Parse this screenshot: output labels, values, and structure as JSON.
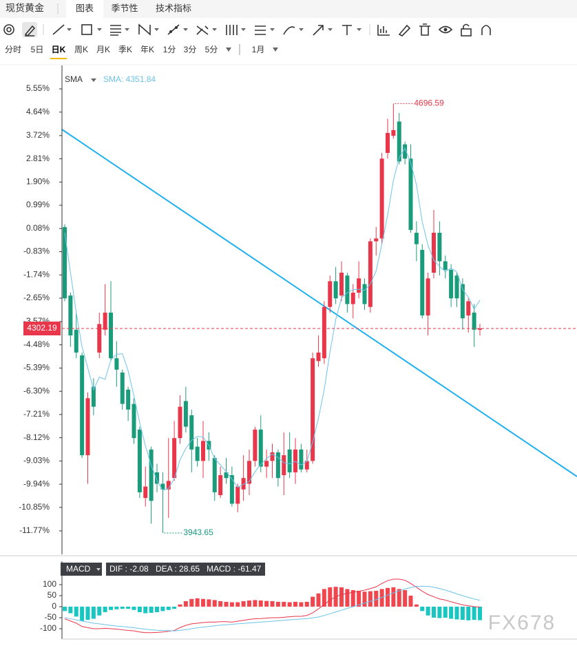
{
  "tabs": {
    "title": "现货黄金",
    "items": [
      "图表",
      "季节性",
      "技术指标"
    ]
  },
  "periods": [
    "分时",
    "5日",
    "日K",
    "周K",
    "月K",
    "季K",
    "年K",
    "1分",
    "3分",
    "5分"
  ],
  "range": "1月",
  "watermark": "FX678",
  "chart_data": {
    "type": "candlestick",
    "sma_label": "SMA",
    "sma_value_label": "SMA: 4351.84",
    "colors": {
      "up": "#e8364a",
      "down": "#1a9c7a",
      "sma": "#6cc3ea"
    },
    "ylim": [
      3906.2,
      4763.4
    ],
    "yticks": [
      {
        "value": 4722.27,
        "label": "5.55%"
      },
      {
        "value": 4681.55,
        "label": "4.64%"
      },
      {
        "value": 4640.39,
        "label": "3.72%"
      },
      {
        "value": 4599.68,
        "label": "2.81%"
      },
      {
        "value": 4558.96,
        "label": "1.90%"
      },
      {
        "value": 4518.25,
        "label": "0.99%"
      },
      {
        "value": 4477.54,
        "label": "0.08%"
      },
      {
        "value": 4436.83,
        "label": "-0.83%"
      },
      {
        "value": 4396.11,
        "label": "-1.74%"
      },
      {
        "value": 4355.4,
        "label": "-2.65%"
      },
      {
        "value": 4314.24,
        "label": "-3.57%"
      },
      {
        "value": 4273.53,
        "label": "-4.48%"
      },
      {
        "value": 4232.81,
        "label": "-5.39%"
      },
      {
        "value": 4192.1,
        "label": "-6.30%"
      },
      {
        "value": 4151.39,
        "label": "-7.21%"
      },
      {
        "value": 4110.68,
        "label": "-8.12%"
      },
      {
        "value": 4069.96,
        "label": "-9.03%"
      },
      {
        "value": 4029.25,
        "label": "-9.94%"
      },
      {
        "value": 3988.54,
        "label": "-10.85%"
      },
      {
        "value": 3947.38,
        "label": "-11.77%"
      }
    ],
    "candles": {
      "open": [
        4480,
        4360,
        4300,
        4255,
        4080,
        4200,
        4260,
        4300,
        4330,
        4250,
        4225,
        4195,
        4170,
        4125,
        4005,
        4090,
        4050,
        4030,
        4020,
        4040,
        4110,
        4175,
        4150,
        4095,
        4070,
        4105,
        4075,
        4010,
        4050,
        4045,
        3995,
        4020,
        4030,
        4070,
        4125,
        4060,
        4070,
        4085,
        4045,
        4090,
        4050,
        4090,
        4055,
        4070,
        4245,
        4250,
        4340,
        4385,
        4360,
        4395,
        4345,
        4365,
        4380,
        4340,
        4455,
        4460,
        4610,
        4640,
        4665,
        4625,
        4600,
        4470,
        4440,
        4325,
        4400,
        4470,
        4420,
        4405,
        4395,
        4380,
        4325,
        4330,
        4300
      ],
      "high": [
        4485,
        4365,
        4330,
        4260,
        4190,
        4215,
        4330,
        4380,
        4385,
        4280,
        4230,
        4200,
        4180,
        4130,
        4060,
        4095,
        4065,
        4050,
        4110,
        4140,
        4185,
        4200,
        4160,
        4110,
        4140,
        4120,
        4080,
        4060,
        4075,
        4060,
        4030,
        4080,
        4090,
        4130,
        4150,
        4090,
        4100,
        4090,
        4120,
        4120,
        4110,
        4100,
        4090,
        4260,
        4290,
        4350,
        4395,
        4410,
        4420,
        4400,
        4380,
        4420,
        4390,
        4460,
        4480,
        4610,
        4670,
        4696.59,
        4680,
        4630,
        4625,
        4490,
        4450,
        4400,
        4510,
        4490,
        4430,
        4415,
        4400,
        4390,
        4355,
        4345,
        4310
      ],
      "low": [
        4350,
        4270,
        4250,
        4075,
        4030,
        4150,
        4250,
        4290,
        4245,
        4200,
        4160,
        4140,
        4100,
        4005,
        3990,
        3960,
        4015,
        3943.65,
        3970,
        4035,
        4100,
        4120,
        4050,
        4060,
        4040,
        4070,
        4000,
        4005,
        4030,
        3990,
        3980,
        4000,
        4010,
        4060,
        4050,
        4040,
        4040,
        4025,
        4010,
        4040,
        4030,
        4050,
        4050,
        4065,
        4235,
        4240,
        4330,
        4345,
        4350,
        4330,
        4320,
        4355,
        4335,
        4330,
        4430,
        4450,
        4600,
        4635,
        4590,
        4590,
        4470,
        4420,
        4320,
        4290,
        4390,
        4395,
        4390,
        4340,
        4340,
        4300,
        4295,
        4270,
        4290
      ],
      "close": [
        4355,
        4290,
        4260,
        4080,
        4180,
        4165,
        4310,
        4330,
        4250,
        4230,
        4170,
        4160,
        4110,
        4015,
        4025,
        4000,
        4030,
        4020,
        4035,
        4110,
        4165,
        4130,
        4090,
        4070,
        4105,
        4090,
        4015,
        4045,
        4040,
        3995,
        4025,
        4040,
        4070,
        4125,
        4060,
        4070,
        4085,
        4040,
        4080,
        4050,
        4090,
        4055,
        4070,
        4250,
        4260,
        4340,
        4385,
        4355,
        4400,
        4345,
        4365,
        4390,
        4345,
        4455,
        4460,
        4600,
        4645,
        4650,
        4595,
        4600,
        4475,
        4450,
        4325,
        4390,
        4470,
        4420,
        4405,
        4355,
        4355,
        4320,
        4350,
        4300,
        4302.19
      ]
    },
    "sma": [
      4470,
      4400,
      4330,
      4270,
      4233,
      4195,
      4217,
      4213,
      4247,
      4257,
      4258,
      4228,
      4184,
      4137,
      4096,
      4062,
      4036,
      4018,
      4022,
      4039,
      4072,
      4092,
      4106,
      4113,
      4112,
      4097,
      4074,
      4063,
      4051,
      4038,
      4024,
      4029,
      4034,
      4051,
      4064,
      4074,
      4082,
      4076,
      4067,
      4065,
      4069,
      4063,
      4069,
      4103,
      4145,
      4195,
      4261,
      4318,
      4356,
      4365,
      4370,
      4371,
      4369,
      4380,
      4403,
      4450,
      4501,
      4562,
      4602,
      4618,
      4593,
      4554,
      4489,
      4448,
      4422,
      4411,
      4402,
      4408,
      4401,
      4371,
      4357,
      4336,
      4351.84
    ]
  },
  "macd_chart": {
    "type": "macd",
    "indicator": "MACD",
    "legend": [
      "DIF : -2.08",
      "DEA : 28.65",
      "MACD : -61.47"
    ],
    "colors": {
      "up": "#f0474f",
      "down": "#19c6c2",
      "dif": "#e8364a",
      "dea": "#6cc3ea"
    },
    "ylim": [
      -147,
      128
    ],
    "yticks": [
      100,
      50,
      0,
      -50,
      -100
    ],
    "histogram": [
      -20,
      -30,
      -45,
      -65,
      -60,
      -55,
      -40,
      -25,
      -15,
      -12,
      -10,
      -10,
      -15,
      -25,
      -30,
      -28,
      -25,
      -20,
      -15,
      -10,
      10,
      25,
      35,
      38,
      35,
      33,
      30,
      25,
      22,
      20,
      20,
      25,
      28,
      30,
      28,
      26,
      25,
      22,
      22,
      20,
      22,
      20,
      22,
      45,
      60,
      80,
      88,
      90,
      88,
      80,
      75,
      72,
      68,
      70,
      72,
      80,
      85,
      88,
      80,
      75,
      50,
      10,
      -20,
      -40,
      -50,
      -52,
      -50,
      -55,
      -58,
      -60,
      -62,
      -60,
      -61.47
    ],
    "dif": [
      -55,
      -65,
      -75,
      -90,
      -95,
      -100,
      -100,
      -98,
      -100,
      -102,
      -105,
      -108,
      -110,
      -115,
      -118,
      -118,
      -117,
      -115,
      -112,
      -108,
      -95,
      -85,
      -78,
      -75,
      -72,
      -70,
      -70,
      -68,
      -68,
      -70,
      -66,
      -62,
      -58,
      -55,
      -54,
      -52,
      -50,
      -50,
      -48,
      -46,
      -44,
      -44,
      -40,
      -28,
      -10,
      10,
      30,
      45,
      55,
      60,
      65,
      70,
      75,
      82,
      90,
      105,
      118,
      125,
      125,
      120,
      105,
      88,
      70,
      55,
      45,
      35,
      30,
      22,
      15,
      8,
      4,
      0,
      -2.08
    ],
    "dea": [
      -50,
      -55,
      -60,
      -65,
      -70,
      -75,
      -78,
      -82,
      -85,
      -88,
      -90,
      -93,
      -96,
      -99,
      -102,
      -105,
      -107,
      -108,
      -109,
      -110,
      -107,
      -104,
      -100,
      -96,
      -93,
      -90,
      -87,
      -84,
      -82,
      -80,
      -78,
      -76,
      -74,
      -72,
      -70,
      -68,
      -66,
      -64,
      -62,
      -60,
      -58,
      -56,
      -54,
      -51,
      -47,
      -40,
      -32,
      -24,
      -16,
      -8,
      0,
      8,
      16,
      24,
      32,
      42,
      52,
      62,
      72,
      80,
      87,
      92,
      93,
      92,
      88,
      82,
      75,
      67,
      58,
      50,
      42,
      35,
      28.65
    ]
  }
}
